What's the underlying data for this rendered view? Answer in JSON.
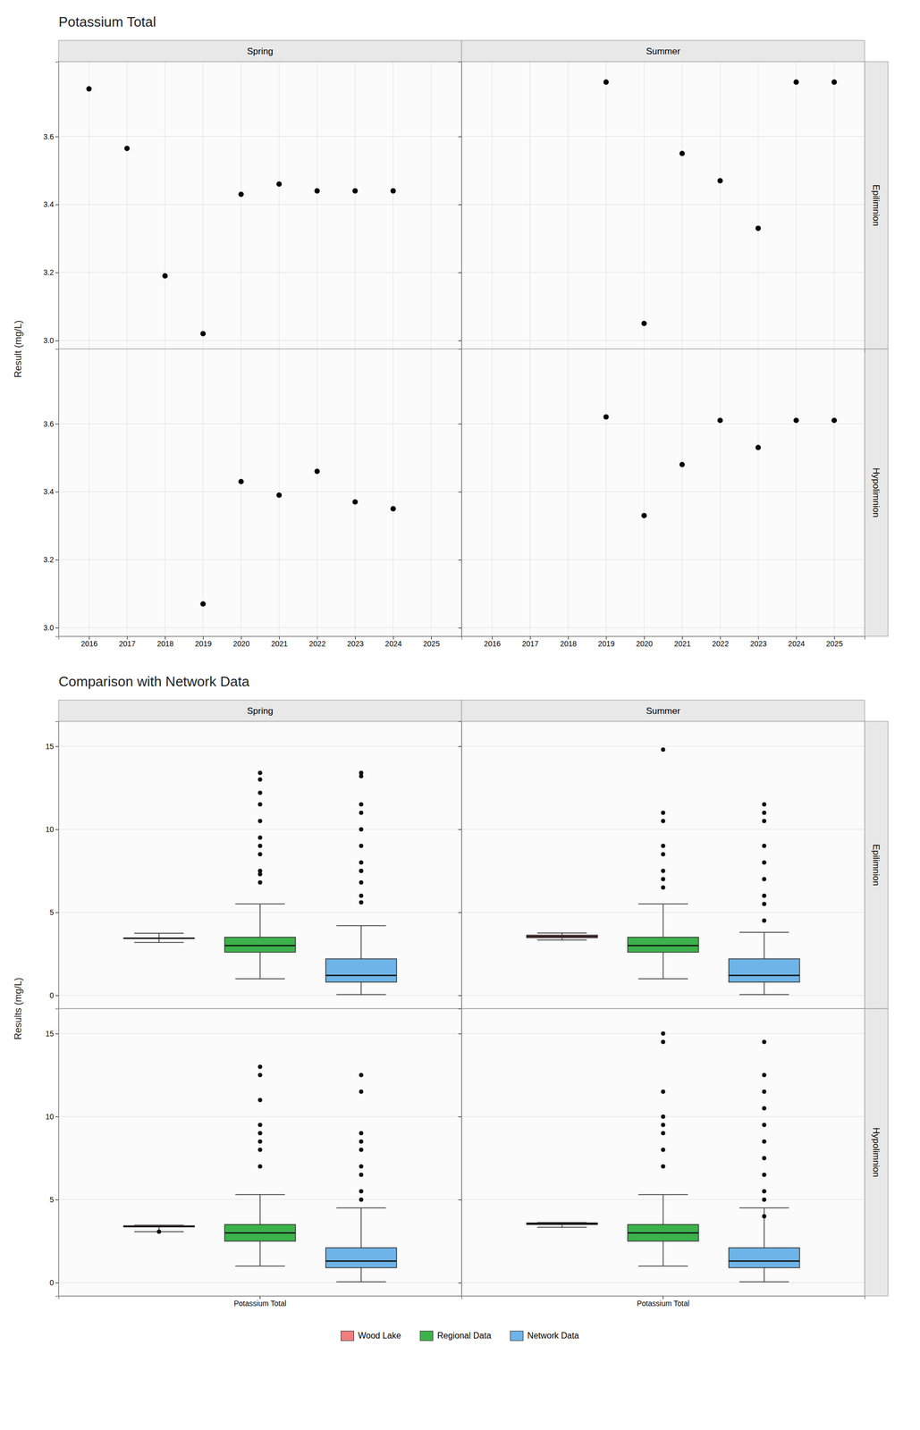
{
  "chart_data": [
    {
      "type": "scatter",
      "title": "Potassium Total",
      "y_label": "Result (mg/L)",
      "facet_columns": [
        "Spring",
        "Summer"
      ],
      "facet_rows": [
        "Epilimnion",
        "Hypolimnion"
      ],
      "color": "#000000",
      "xlim": [
        2015.2,
        2025.8
      ],
      "xticks": [
        2016,
        2017,
        2018,
        2019,
        2020,
        2021,
        2022,
        2023,
        2024,
        2025
      ],
      "ylim": [
        2.975,
        3.82
      ],
      "yticks": [
        {
          "value": 3.0,
          "label": "3.0"
        },
        3.2,
        3.4,
        3.6
      ],
      "grid": true,
      "panels": [
        [
          {
            "x": [
              2016,
              2017,
              2018,
              2019,
              2020,
              2021,
              2022,
              2023,
              2024
            ],
            "values": [
              3.74,
              3.565,
              3.19,
              3.02,
              3.43,
              3.46,
              3.44,
              3.44,
              3.44
            ]
          },
          {
            "x": [
              2019,
              2020,
              2021,
              2022,
              2023,
              2024,
              2025
            ],
            "values": [
              3.76,
              3.05,
              3.55,
              3.47,
              3.33,
              3.76,
              3.76
            ]
          }
        ],
        [
          {
            "x": [
              2019,
              2020,
              2021,
              2022,
              2023,
              2024
            ],
            "values": [
              3.07,
              3.43,
              3.39,
              3.46,
              3.37,
              3.35
            ]
          },
          {
            "x": [
              2019,
              2020,
              2021,
              2022,
              2023,
              2024,
              2025
            ],
            "values": [
              3.62,
              3.33,
              3.48,
              3.61,
              3.53,
              3.61,
              3.61
            ]
          }
        ]
      ]
    },
    {
      "type": "box",
      "title": "Comparison with Network Data",
      "y_label": "Results (mg/L)",
      "facet_columns": [
        "Spring",
        "Summer"
      ],
      "facet_rows": [
        "Epilimnion",
        "Hypolimnion"
      ],
      "categories": [
        "Potassium Total"
      ],
      "series": [
        {
          "name": "Wood Lake",
          "color": "#F08080"
        },
        {
          "name": "Regional Data",
          "color": "#3CB34A"
        },
        {
          "name": "Network Data",
          "color": "#6EB4E8"
        }
      ],
      "ylim": [
        -0.8,
        16.5
      ],
      "yticks": [
        0,
        5,
        10,
        15
      ],
      "grid": true,
      "legend": "bottom",
      "panels": [
        [
          [
            {
              "med": 3.44,
              "q1": 3.43,
              "q3": 3.45,
              "whislo": 3.19,
              "whishi": 3.74,
              "fliers": []
            },
            {
              "med": 3.0,
              "q1": 2.6,
              "q3": 3.5,
              "whislo": 1.0,
              "whishi": 5.5,
              "fliers": [
                6.8,
                7.3,
                7.5,
                8.5,
                9.0,
                9.5,
                10.5,
                11.5,
                12.2,
                13.0,
                13.4
              ]
            },
            {
              "med": 1.2,
              "q1": 0.8,
              "q3": 2.2,
              "whislo": 0.05,
              "whishi": 4.2,
              "fliers": [
                5.6,
                6.0,
                6.8,
                7.5,
                7.5,
                8.0,
                9.0,
                10.0,
                11.0,
                11.5,
                13.2,
                13.4
              ]
            }
          ],
          [
            {
              "med": 3.55,
              "q1": 3.47,
              "q3": 3.63,
              "whislo": 3.33,
              "whishi": 3.76,
              "fliers": []
            },
            {
              "med": 3.0,
              "q1": 2.6,
              "q3": 3.5,
              "whislo": 1.0,
              "whishi": 5.5,
              "fliers": [
                6.5,
                7.0,
                7.5,
                8.5,
                9.0,
                10.5,
                11.0,
                14.8
              ]
            },
            {
              "med": 1.2,
              "q1": 0.8,
              "q3": 2.2,
              "whislo": 0.05,
              "whishi": 3.8,
              "fliers": [
                4.5,
                5.5,
                6.0,
                7.0,
                8.0,
                9.0,
                10.5,
                11.0,
                11.5
              ]
            }
          ]
        ],
        [
          [
            {
              "med": 3.37,
              "q1": 3.36,
              "q3": 3.43,
              "whislo": 3.07,
              "whishi": 3.46,
              "fliers": [
                3.07
              ]
            },
            {
              "med": 3.0,
              "q1": 2.5,
              "q3": 3.5,
              "whislo": 1.0,
              "whishi": 5.3,
              "fliers": [
                7.0,
                8.0,
                8.5,
                9.0,
                9.5,
                11.0,
                12.5,
                13.0
              ]
            },
            {
              "med": 1.3,
              "q1": 0.9,
              "q3": 2.1,
              "whislo": 0.05,
              "whishi": 4.5,
              "fliers": [
                5.0,
                5.5,
                6.5,
                7.0,
                8.0,
                8.5,
                9.0,
                11.5,
                12.5
              ]
            }
          ],
          [
            {
              "med": 3.55,
              "q1": 3.5,
              "q3": 3.6,
              "whislo": 3.33,
              "whishi": 3.62,
              "fliers": []
            },
            {
              "med": 3.0,
              "q1": 2.5,
              "q3": 3.5,
              "whislo": 1.0,
              "whishi": 5.3,
              "fliers": [
                7.0,
                8.0,
                9.0,
                9.5,
                10.0,
                11.5,
                14.5,
                15.0
              ]
            },
            {
              "med": 1.3,
              "q1": 0.9,
              "q3": 2.1,
              "whislo": 0.05,
              "whishi": 4.5,
              "fliers": [
                4.0,
                5.0,
                5.5,
                6.5,
                7.5,
                8.5,
                9.5,
                10.5,
                11.5,
                12.5,
                14.5
              ]
            }
          ]
        ]
      ]
    }
  ]
}
